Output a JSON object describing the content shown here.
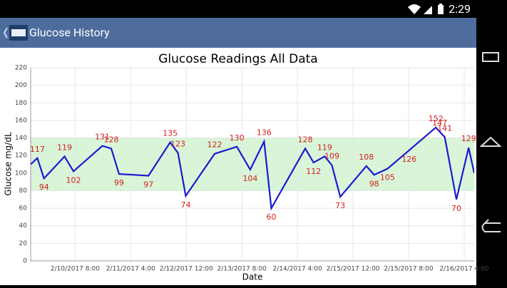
{
  "status_bar": {
    "time": "2:29"
  },
  "app_bar": {
    "title": "Glucose History"
  },
  "chart_data": {
    "type": "line",
    "title": "Glucose Readings All Data",
    "x_label": "Date",
    "y_label": "Glucose mg/dL",
    "x": [
      -0.8,
      -0.68,
      -0.56,
      -0.19,
      -0.03,
      0.49,
      0.65,
      0.79,
      1.32,
      1.71,
      1.85,
      1.99,
      2.51,
      2.91,
      3.15,
      3.4,
      3.53,
      4.14,
      4.29,
      4.49,
      4.62,
      4.77,
      5.24,
      5.38,
      5.62,
      6.01,
      6.49,
      6.56,
      6.65,
      6.86,
      7.08,
      7.18
    ],
    "values": [
      110,
      117,
      94,
      119,
      102,
      131,
      128,
      99,
      97,
      135,
      123,
      74,
      122,
      130,
      104,
      136,
      60,
      128,
      112,
      119,
      109,
      73,
      108,
      98,
      105,
      126,
      152,
      147,
      141,
      70,
      129,
      100
    ],
    "color": "#1a1ad0",
    "label_color": "#d42020",
    "target_range": [
      80,
      140
    ],
    "target_color": "#d8f5d8",
    "xlim": [
      -0.8,
      7.18
    ],
    "xticks": [
      {
        "value": 0,
        "label": "2/10/2017 8:00"
      },
      {
        "value": 1,
        "label": "2/11/2017 4:00"
      },
      {
        "value": 2,
        "label": "2/12/2017 12:00"
      },
      {
        "value": 3,
        "label": "2/13/2017 8:00"
      },
      {
        "value": 4,
        "label": "2/14/2017 4:00"
      },
      {
        "value": 5,
        "label": "2/15/2017 12:00"
      },
      {
        "value": 6,
        "label": "2/15/2017 8:00"
      },
      {
        "value": 7,
        "label": "2/16/2017 4:00"
      }
    ],
    "ylim": [
      0,
      220
    ],
    "yticks": [
      0,
      20,
      40,
      60,
      80,
      100,
      120,
      140,
      160,
      180,
      200,
      220
    ],
    "grid": true
  }
}
